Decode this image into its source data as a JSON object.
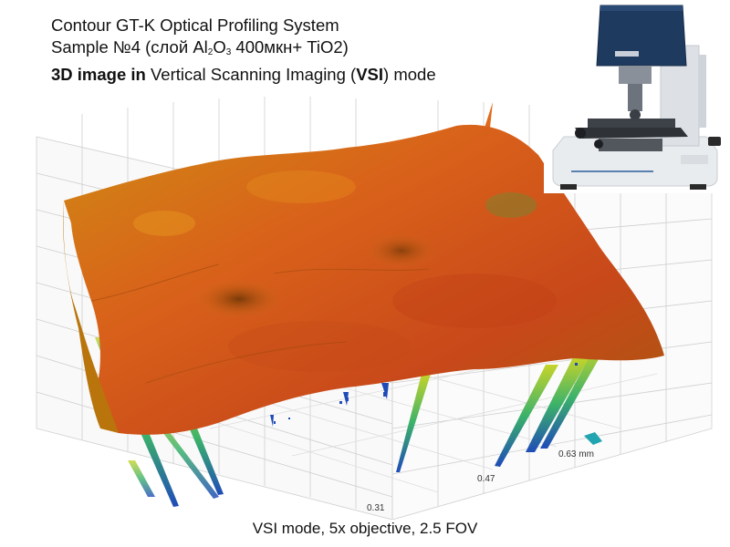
{
  "title": {
    "line1": "Contour GT-K Optical Profiling System",
    "line2": {
      "prefix": "Sample №4 (слой Al",
      "sub1": "2",
      "mid": "O",
      "sub2": "3",
      "suffix": " 400мкн+ TiO2)"
    },
    "line3": {
      "part_a": "3D image in",
      "part_b": " Vertical Scanning Imaging (",
      "part_c": "VSI",
      "part_d": ") mode"
    }
  },
  "caption": "VSI mode, 5x objective, 2.5 FOV",
  "axis": {
    "tick_1": "0.31",
    "tick_2": "0.47",
    "tick_3": "0.63 mm"
  },
  "colors": {
    "surface_high": "#c2410c",
    "surface_mid": "#e07a10",
    "surface_low": "#9a5a0a",
    "spike_green": "#9acd32",
    "spike_blue": "#1f4bb8",
    "grid": "#cfcfcf",
    "instrument_blue": "#1f3a5f"
  },
  "image": {
    "instrument_photo": "optical-profiler-instrument"
  }
}
